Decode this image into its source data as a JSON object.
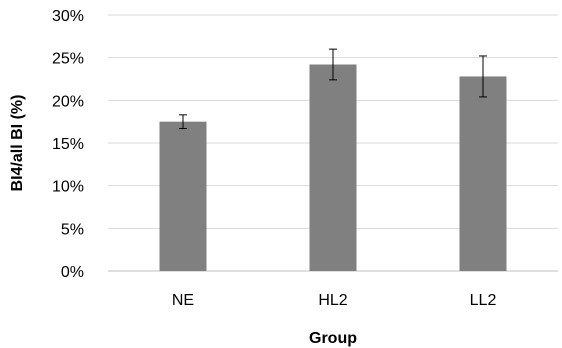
{
  "chart_data": {
    "type": "bar",
    "categories": [
      "NE",
      "HL2",
      "LL2"
    ],
    "values": [
      17.5,
      24.2,
      22.8
    ],
    "error": [
      0.8,
      1.8,
      2.4
    ],
    "xlabel": "Group",
    "ylabel": "BI4/all BI (%)",
    "ylim": [
      0,
      30
    ],
    "yticks": [
      0,
      5,
      10,
      15,
      20,
      25,
      30
    ],
    "ytick_labels": [
      "0%",
      "5%",
      "10%",
      "15%",
      "20%",
      "25%",
      "30%"
    ],
    "grid": true,
    "legend": "none",
    "colors": {
      "bar": "#808080",
      "grid": "#d9d9d9",
      "axis": "#bfbfbf",
      "error_bar": "#000000"
    }
  }
}
